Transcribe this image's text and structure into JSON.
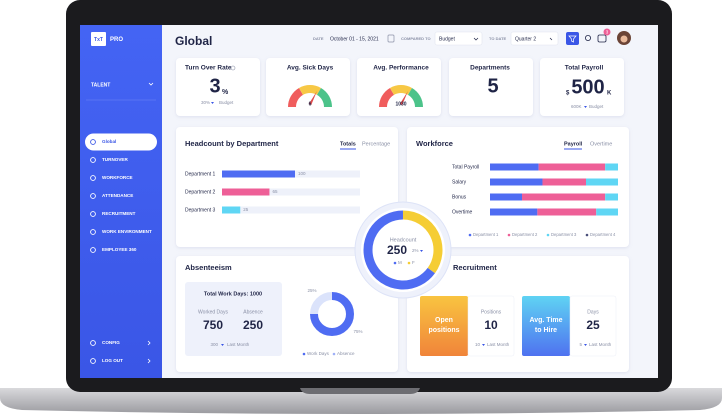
{
  "sidebar": {
    "logo": "TxT",
    "brand": "PRO",
    "section": "TALENT",
    "menu": [
      "Global",
      "TURNOVER",
      "WORKFORCE",
      "ATTENDANCE",
      "RECRUITMENT",
      "WORK ENVIRONMENT",
      "EMPLOYEE 360"
    ],
    "footer": [
      "CONFIG",
      "LOG OUT"
    ]
  },
  "header": {
    "title": "Global",
    "date_label": "DATE",
    "date": "October 01 - 15, 2021",
    "compare_label": "COMPARED TO",
    "compare": "Budget",
    "to_date_label": "TO DATE",
    "to_date": "Quarter 2",
    "badge": 3
  },
  "kpis": {
    "turnover": {
      "title": "Turn Over Rate",
      "value": 3,
      "unit": "%",
      "delta": "30%",
      "reference": "Budget"
    },
    "sick_days": {
      "title": "Avg. Sick Days",
      "value": 6
    },
    "performance": {
      "title": "Avg. Performance",
      "value": 1030
    },
    "departments": {
      "title": "Departments",
      "value": 5
    },
    "payroll": {
      "title": "Total Payroll",
      "prefix": "$",
      "value": 500,
      "suffix": "K",
      "delta": "600K",
      "reference": "Budget"
    }
  },
  "headcount_by_department": {
    "title": "Headcount by Department",
    "tabs": [
      "Totals",
      "Percentage"
    ],
    "categories": [
      "Department 1",
      "Department 2",
      "Department 3"
    ],
    "values": [
      100,
      65,
      25
    ],
    "colors": [
      "#4f6cf2",
      "#ee5f97",
      "#5fd6f4"
    ]
  },
  "workforce": {
    "title": "Workforce",
    "tabs": [
      "Payroll",
      "Overtime"
    ],
    "categories": [
      "Total Payroll",
      "Salary",
      "Bonus",
      "Overtime"
    ],
    "series": [
      {
        "name": "Department 1",
        "color": "#4f6cf2",
        "values": [
          38,
          41,
          25,
          37
        ]
      },
      {
        "name": "Department 2",
        "color": "#ee5f97",
        "values": [
          52,
          34,
          65,
          46
        ]
      },
      {
        "name": "Department 3",
        "color": "#5fd6f4",
        "values": [
          10,
          25,
          10,
          17
        ]
      },
      {
        "name": "Department 4",
        "color": "#4a4f7a",
        "values": [
          0,
          0,
          0,
          0
        ]
      }
    ]
  },
  "headcount": {
    "title": "Headcount",
    "value": 250,
    "delta": "2%",
    "series": [
      {
        "name": "M",
        "color": "#4f6cf2",
        "value": 65
      },
      {
        "name": "F",
        "color": "#f5cd34",
        "value": 35
      }
    ]
  },
  "absenteeism": {
    "title": "Absenteeism",
    "total": "Total Work Days: 1000",
    "worked_label": "Worked Days",
    "worked": 750,
    "absence_label": "Absence",
    "absence": 250,
    "last_month": 300,
    "last_month_label": "Last Month",
    "donut": [
      {
        "name": "Work Days",
        "color": "#4f6cf2",
        "value": 75,
        "label": "75%"
      },
      {
        "name": "Absence",
        "color": "#dbe3fb",
        "value": 25,
        "label": "25%"
      }
    ]
  },
  "recruitment": {
    "title": "Recruitment",
    "cards": [
      {
        "title": [
          "Open",
          "positions"
        ],
        "label": "Positions",
        "value": 10,
        "last_month": 10,
        "last_month_label": "Last Month"
      },
      {
        "title": [
          "Avg. Time",
          "to Hire"
        ],
        "label": "Days",
        "value": 25,
        "last_month": 5,
        "last_month_label": "Last Month"
      }
    ]
  }
}
